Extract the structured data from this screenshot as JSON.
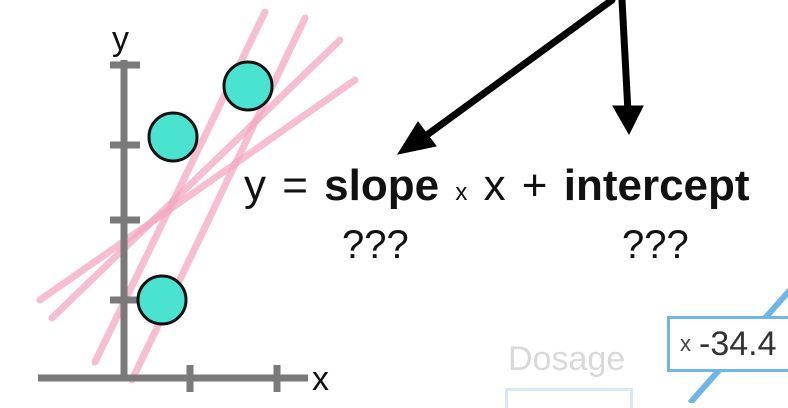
{
  "axes": {
    "x_label": "x",
    "y_label": "y"
  },
  "equation": {
    "y": "y",
    "equals": "=",
    "slope": "slope",
    "times": "x",
    "x": "x",
    "plus": "+",
    "intercept": "intercept",
    "slope_unknown": "???",
    "intercept_unknown": "???"
  },
  "overlay": {
    "dosage_label": "Dosage",
    "field_prefix": "x",
    "field_value": "-34.4"
  },
  "colors": {
    "axis": "#7a7a7a",
    "candidate_lines": "#f4a7c0",
    "points_fill": "#49e3cf",
    "points_stroke": "#111111",
    "arrows": "#000000",
    "accent_blue": "#6fb6e8"
  }
}
